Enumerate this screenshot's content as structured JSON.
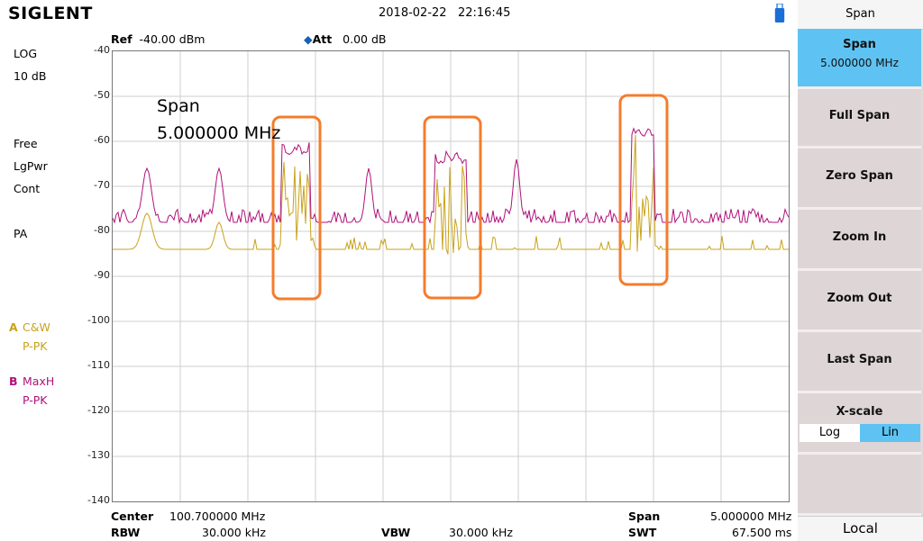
{
  "header": {
    "logo": "SIGLENT",
    "date": "2018-02-22",
    "time": "22:16:45"
  },
  "measure": {
    "ref_label": "Ref",
    "ref_value": "-40.00 dBm",
    "att_label": "Att",
    "att_value": "0.00 dB"
  },
  "left_panel": {
    "scale_type": "LOG",
    "scale_div": "10 dB",
    "trigger": "Free",
    "detector": "LgPwr",
    "sweep_mode": "Cont",
    "preamp": "PA",
    "trace_a": {
      "letter": "A",
      "mode": "C&W",
      "detect": "P-PK",
      "color": "#c8a21a"
    },
    "trace_b": {
      "letter": "B",
      "mode": "MaxH",
      "detect": "P-PK",
      "color": "#b0117a"
    }
  },
  "plot": {
    "y_ticks": [
      "-40",
      "-50",
      "-60",
      "-70",
      "-80",
      "-90",
      "-100",
      "-110",
      "-120",
      "-130",
      "-140"
    ],
    "annotation_line1": "Span",
    "annotation_line2": "5.000000 MHz",
    "highlight_color": "#f47c2c"
  },
  "footer": {
    "center_label": "Center",
    "center_value": "100.700000 MHz",
    "rbw_label": "RBW",
    "rbw_value": "30.000 kHz",
    "vbw_label": "VBW",
    "vbw_value": "30.000 kHz",
    "span_label": "Span",
    "span_value": "5.000000 MHz",
    "swt_label": "SWT",
    "swt_value": "67.500 ms"
  },
  "softkeys": {
    "menu_title": "Span",
    "span_label": "Span",
    "span_value": "5.000000 MHz",
    "full_span": "Full Span",
    "zero_span": "Zero Span",
    "zoom_in": "Zoom In",
    "zoom_out": "Zoom Out",
    "last_span": "Last Span",
    "xscale_label": "X-scale",
    "xscale_log": "Log",
    "xscale_lin": "Lin",
    "xscale_selected": "Lin",
    "local": "Local"
  },
  "colors": {
    "active_key": "#5ec3f2",
    "trace_a": "#c8a21a",
    "trace_b": "#b0117a"
  }
}
